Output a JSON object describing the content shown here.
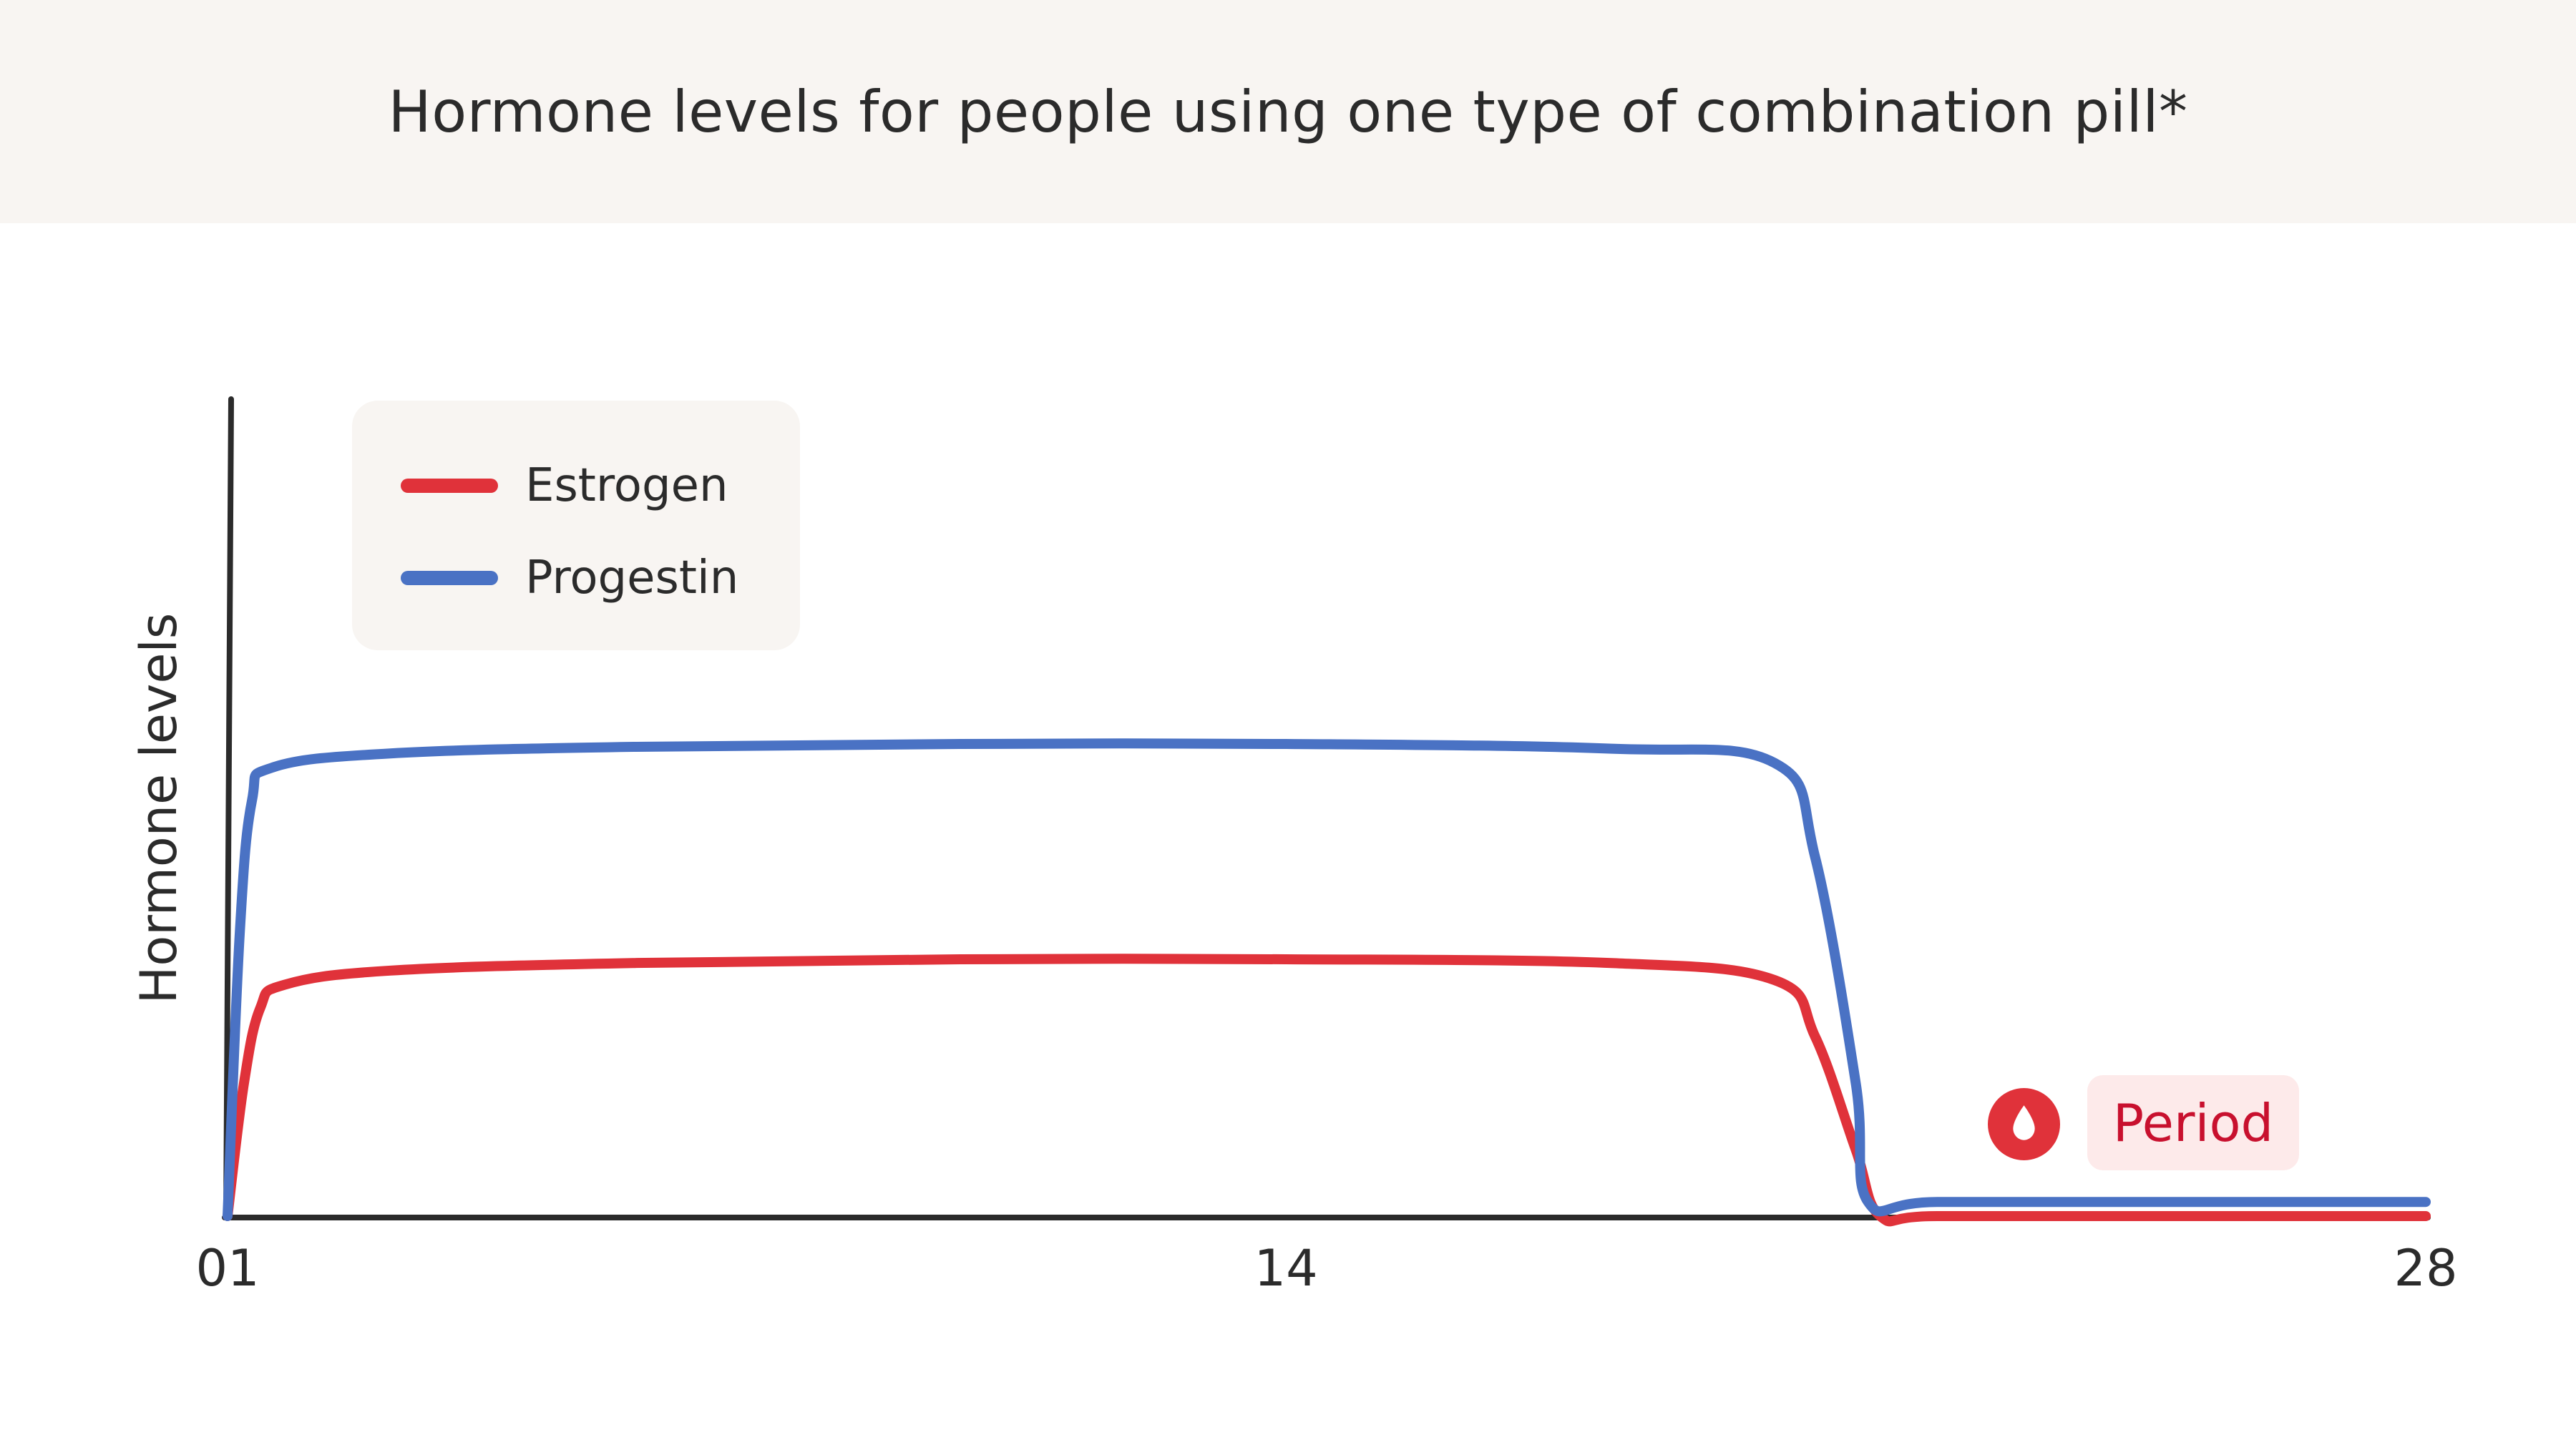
{
  "title": "Hormone levels for people using one type of combination pill*",
  "legend": {
    "items": [
      {
        "label": "Estrogen",
        "color": "#e0323a"
      },
      {
        "label": "Progestin",
        "color": "#4a72c4"
      }
    ]
  },
  "annotation": {
    "label": "Period",
    "icon": "blood-drop-icon",
    "color": "#c8102e",
    "icon_color": "#e0323a"
  },
  "chart_data": {
    "type": "line",
    "title": "Hormone levels for people using one type of combination pill*",
    "xlabel": "",
    "ylabel": "Hormone levels",
    "xticks": [
      "01",
      "14",
      "28"
    ],
    "xlim": [
      1,
      28
    ],
    "ylim": [
      0,
      1
    ],
    "grid": false,
    "legend_position": "top-left",
    "series": [
      {
        "name": "Estrogen",
        "color": "#e0323a",
        "x": [
          1,
          1.2,
          1.4,
          1.7,
          3,
          6,
          10,
          14,
          18,
          20.0,
          20.5,
          21.0,
          21.3,
          22,
          25,
          28
        ],
        "y": [
          0,
          0.14,
          0.22,
          0.245,
          0.26,
          0.268,
          0.272,
          0.272,
          0.268,
          0.25,
          0.19,
          0.07,
          0.0,
          0.0,
          0.0,
          0.0
        ]
      },
      {
        "name": "Progestin",
        "color": "#4a72c4",
        "x": [
          1,
          1.15,
          1.3,
          1.55,
          3,
          6,
          10,
          14,
          18,
          20.0,
          20.5,
          21.0,
          21.15,
          22,
          25,
          28
        ],
        "y": [
          0,
          0.3,
          0.44,
          0.475,
          0.49,
          0.497,
          0.5,
          0.5,
          0.495,
          0.48,
          0.38,
          0.14,
          0.015,
          0.015,
          0.015,
          0.015
        ]
      }
    ]
  }
}
